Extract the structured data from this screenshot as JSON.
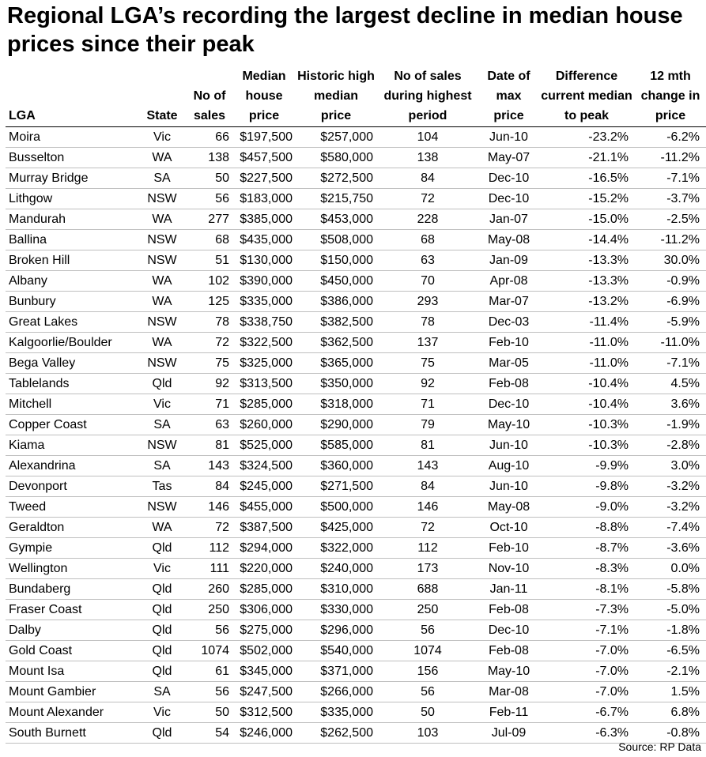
{
  "title": "Regional LGA’s recording the largest decline in median house prices since their peak",
  "headers": [
    "LGA",
    "State",
    "No of\nsales",
    "Median\nhouse\nprice",
    "Historic high\nmedian\nprice",
    "No of sales\nduring highest\nperiod",
    "Date of\nmax\nprice",
    "Difference\ncurrent median\nto peak",
    "12 mth\nchange in\nprice"
  ],
  "rows": [
    [
      "Moira",
      "Vic",
      "66",
      "$197,500",
      "$257,000",
      "104",
      "Jun-10",
      "-23.2%",
      "-6.2%"
    ],
    [
      "Busselton",
      "WA",
      "138",
      "$457,500",
      "$580,000",
      "138",
      "May-07",
      "-21.1%",
      "-11.2%"
    ],
    [
      "Murray Bridge",
      "SA",
      "50",
      "$227,500",
      "$272,500",
      "84",
      "Dec-10",
      "-16.5%",
      "-7.1%"
    ],
    [
      "Lithgow",
      "NSW",
      "56",
      "$183,000",
      "$215,750",
      "72",
      "Dec-10",
      "-15.2%",
      "-3.7%"
    ],
    [
      "Mandurah",
      "WA",
      "277",
      "$385,000",
      "$453,000",
      "228",
      "Jan-07",
      "-15.0%",
      "-2.5%"
    ],
    [
      "Ballina",
      "NSW",
      "68",
      "$435,000",
      "$508,000",
      "68",
      "May-08",
      "-14.4%",
      "-11.2%"
    ],
    [
      "Broken Hill",
      "NSW",
      "51",
      "$130,000",
      "$150,000",
      "63",
      "Jan-09",
      "-13.3%",
      "30.0%"
    ],
    [
      "Albany",
      "WA",
      "102",
      "$390,000",
      "$450,000",
      "70",
      "Apr-08",
      "-13.3%",
      "-0.9%"
    ],
    [
      "Bunbury",
      "WA",
      "125",
      "$335,000",
      "$386,000",
      "293",
      "Mar-07",
      "-13.2%",
      "-6.9%"
    ],
    [
      "Great Lakes",
      "NSW",
      "78",
      "$338,750",
      "$382,500",
      "78",
      "Dec-03",
      "-11.4%",
      "-5.9%"
    ],
    [
      "Kalgoorlie/Boulder",
      "WA",
      "72",
      "$322,500",
      "$362,500",
      "137",
      "Feb-10",
      "-11.0%",
      "-11.0%"
    ],
    [
      "Bega Valley",
      "NSW",
      "75",
      "$325,000",
      "$365,000",
      "75",
      "Mar-05",
      "-11.0%",
      "-7.1%"
    ],
    [
      "Tablelands",
      "Qld",
      "92",
      "$313,500",
      "$350,000",
      "92",
      "Feb-08",
      "-10.4%",
      "4.5%"
    ],
    [
      "Mitchell",
      "Vic",
      "71",
      "$285,000",
      "$318,000",
      "71",
      "Dec-10",
      "-10.4%",
      "3.6%"
    ],
    [
      "Copper Coast",
      "SA",
      "63",
      "$260,000",
      "$290,000",
      "79",
      "May-10",
      "-10.3%",
      "-1.9%"
    ],
    [
      "Kiama",
      "NSW",
      "81",
      "$525,000",
      "$585,000",
      "81",
      "Jun-10",
      "-10.3%",
      "-2.8%"
    ],
    [
      "Alexandrina",
      "SA",
      "143",
      "$324,500",
      "$360,000",
      "143",
      "Aug-10",
      "-9.9%",
      "3.0%"
    ],
    [
      "Devonport",
      "Tas",
      "84",
      "$245,000",
      "$271,500",
      "84",
      "Jun-10",
      "-9.8%",
      "-3.2%"
    ],
    [
      "Tweed",
      "NSW",
      "146",
      "$455,000",
      "$500,000",
      "146",
      "May-08",
      "-9.0%",
      "-3.2%"
    ],
    [
      "Geraldton",
      "WA",
      "72",
      "$387,500",
      "$425,000",
      "72",
      "Oct-10",
      "-8.8%",
      "-7.4%"
    ],
    [
      "Gympie",
      "Qld",
      "112",
      "$294,000",
      "$322,000",
      "112",
      "Feb-10",
      "-8.7%",
      "-3.6%"
    ],
    [
      "Wellington",
      "Vic",
      "111",
      "$220,000",
      "$240,000",
      "173",
      "Nov-10",
      "-8.3%",
      "0.0%"
    ],
    [
      "Bundaberg",
      "Qld",
      "260",
      "$285,000",
      "$310,000",
      "688",
      "Jan-11",
      "-8.1%",
      "-5.8%"
    ],
    [
      "Fraser Coast",
      "Qld",
      "250",
      "$306,000",
      "$330,000",
      "250",
      "Feb-08",
      "-7.3%",
      "-5.0%"
    ],
    [
      "Dalby",
      "Qld",
      "56",
      "$275,000",
      "$296,000",
      "56",
      "Dec-10",
      "-7.1%",
      "-1.8%"
    ],
    [
      "Gold Coast",
      "Qld",
      "1074",
      "$502,000",
      "$540,000",
      "1074",
      "Feb-08",
      "-7.0%",
      "-6.5%"
    ],
    [
      "Mount Isa",
      "Qld",
      "61",
      "$345,000",
      "$371,000",
      "156",
      "May-10",
      "-7.0%",
      "-2.1%"
    ],
    [
      "Mount Gambier",
      "SA",
      "56",
      "$247,500",
      "$266,000",
      "56",
      "Mar-08",
      "-7.0%",
      "1.5%"
    ],
    [
      "Mount Alexander",
      "Vic",
      "50",
      "$312,500",
      "$335,000",
      "50",
      "Feb-11",
      "-6.7%",
      "6.8%"
    ],
    [
      "South Burnett",
      "Qld",
      "54",
      "$246,000",
      "$262,500",
      "103",
      "Jul-09",
      "-6.3%",
      "-0.8%"
    ]
  ],
  "source": "Source: RP Data"
}
